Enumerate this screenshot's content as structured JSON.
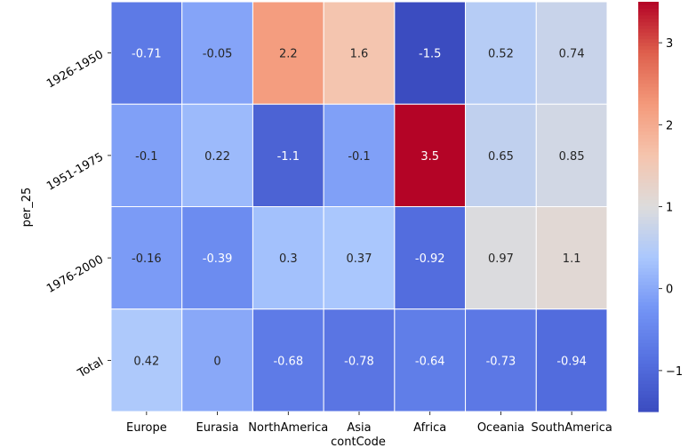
{
  "chart_data": {
    "type": "heatmap",
    "title": "",
    "xlabel": "contCode",
    "ylabel": "per_25",
    "x_categories": [
      "Europe",
      "Eurasia",
      "NorthAmerica",
      "Asia",
      "Africa",
      "Oceania",
      "SouthAmerica"
    ],
    "y_categories": [
      "1926-1950",
      "1951-1975",
      "1976-2000",
      "Total"
    ],
    "values": [
      [
        -0.71,
        -0.05,
        2.2,
        1.6,
        -1.5,
        0.52,
        0.74
      ],
      [
        -0.1,
        0.22,
        -1.1,
        -0.1,
        3.5,
        0.65,
        0.85
      ],
      [
        -0.16,
        -0.39,
        0.3,
        0.37,
        -0.92,
        0.97,
        1.1
      ],
      [
        0.42,
        0,
        -0.68,
        -0.78,
        -0.64,
        -0.73,
        -0.94
      ]
    ],
    "annotations": [
      [
        "-0.71",
        "-0.05",
        "2.2",
        "1.6",
        "-1.5",
        "0.52",
        "0.74"
      ],
      [
        "-0.1",
        "0.22",
        "-1.1",
        "-0.1",
        "3.5",
        "0.65",
        "0.85"
      ],
      [
        "-0.16",
        "-0.39",
        "0.3",
        "0.37",
        "-0.92",
        "0.97",
        "1.1"
      ],
      [
        "0.42",
        "0",
        "-0.68",
        "-0.78",
        "-0.64",
        "-0.73",
        "-0.94"
      ]
    ],
    "colormap": "coolwarm",
    "vmin": -1.5,
    "vmax": 3.5,
    "colorbar_ticks": [
      -1,
      0,
      1,
      2,
      3
    ],
    "colorbar_tick_labels": [
      "−1",
      "0",
      "1",
      "2",
      "3"
    ],
    "grid_color": "#ffffff"
  }
}
